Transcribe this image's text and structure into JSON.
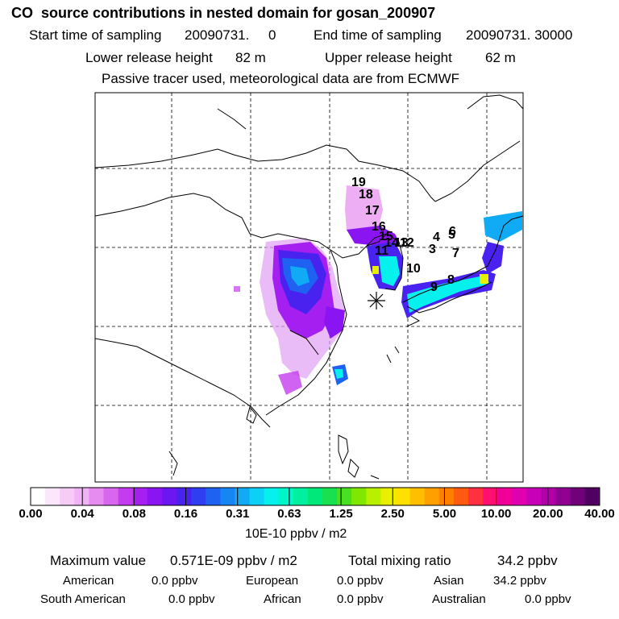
{
  "title": "CO  source contributions in nested domain for gosan_200907",
  "header": {
    "start_label": "Start time of sampling",
    "start_value": "20090731.     0",
    "end_label": "End time of sampling",
    "end_value": "20090731. 30000",
    "lower_label": "Lower release height",
    "lower_value": "82 m",
    "upper_label": "Upper release height",
    "upper_value": "62 m",
    "note": "Passive tracer used, meteorological data are from ECMWF"
  },
  "map": {
    "receptor_marker": "asterisk-marker",
    "track_labels": [
      "19",
      "18",
      "17",
      "16",
      "15",
      "14",
      "13",
      "12",
      "11",
      "10",
      "9",
      "8",
      "7",
      "6",
      "5",
      "4",
      "3"
    ]
  },
  "colorbar": {
    "colors": [
      "#ffffff",
      "#fbe6fb",
      "#f6ccf7",
      "#f0b3f5",
      "#e68bf0",
      "#d966ee",
      "#c43cef",
      "#a51ff0",
      "#8a14f2",
      "#6a17f2",
      "#4a22f0",
      "#2f3ef0",
      "#1f62f2",
      "#1686f4",
      "#10aaf5",
      "#0dd0f5",
      "#06f0ee",
      "#00f5c8",
      "#00f0a0",
      "#00e87a",
      "#18e050",
      "#48e020",
      "#80e800",
      "#b8f000",
      "#e8f000",
      "#ffe000",
      "#ffbf00",
      "#ff9f00",
      "#ff7f00",
      "#ff5a10",
      "#ff3040",
      "#ff1070",
      "#f00098",
      "#e000b0",
      "#c800b8",
      "#b000a8",
      "#900090",
      "#700078",
      "#500060"
    ],
    "tick_labels": [
      "0.00",
      "0.04",
      "0.08",
      "0.16",
      "0.31",
      "0.63",
      "1.25",
      "2.50",
      "5.00",
      "10.00",
      "20.00",
      "40.00"
    ],
    "units": "10E-10 ppbv / m2"
  },
  "summary": {
    "max_label": "Maximum value",
    "max_value": "0.571E-09 ppbv / m2",
    "total_label": "Total mixing ratio",
    "total_value": "34.2 ppbv",
    "regions": [
      {
        "name": "American",
        "value": "0.0 ppbv"
      },
      {
        "name": "European",
        "value": "0.0 ppbv"
      },
      {
        "name": "Asian",
        "value": "34.2 ppbv"
      },
      {
        "name": "South American",
        "value": "0.0 ppbv"
      },
      {
        "name": "African",
        "value": "0.0 ppbv"
      },
      {
        "name": "Australian",
        "value": "0.0 ppbv"
      }
    ]
  }
}
